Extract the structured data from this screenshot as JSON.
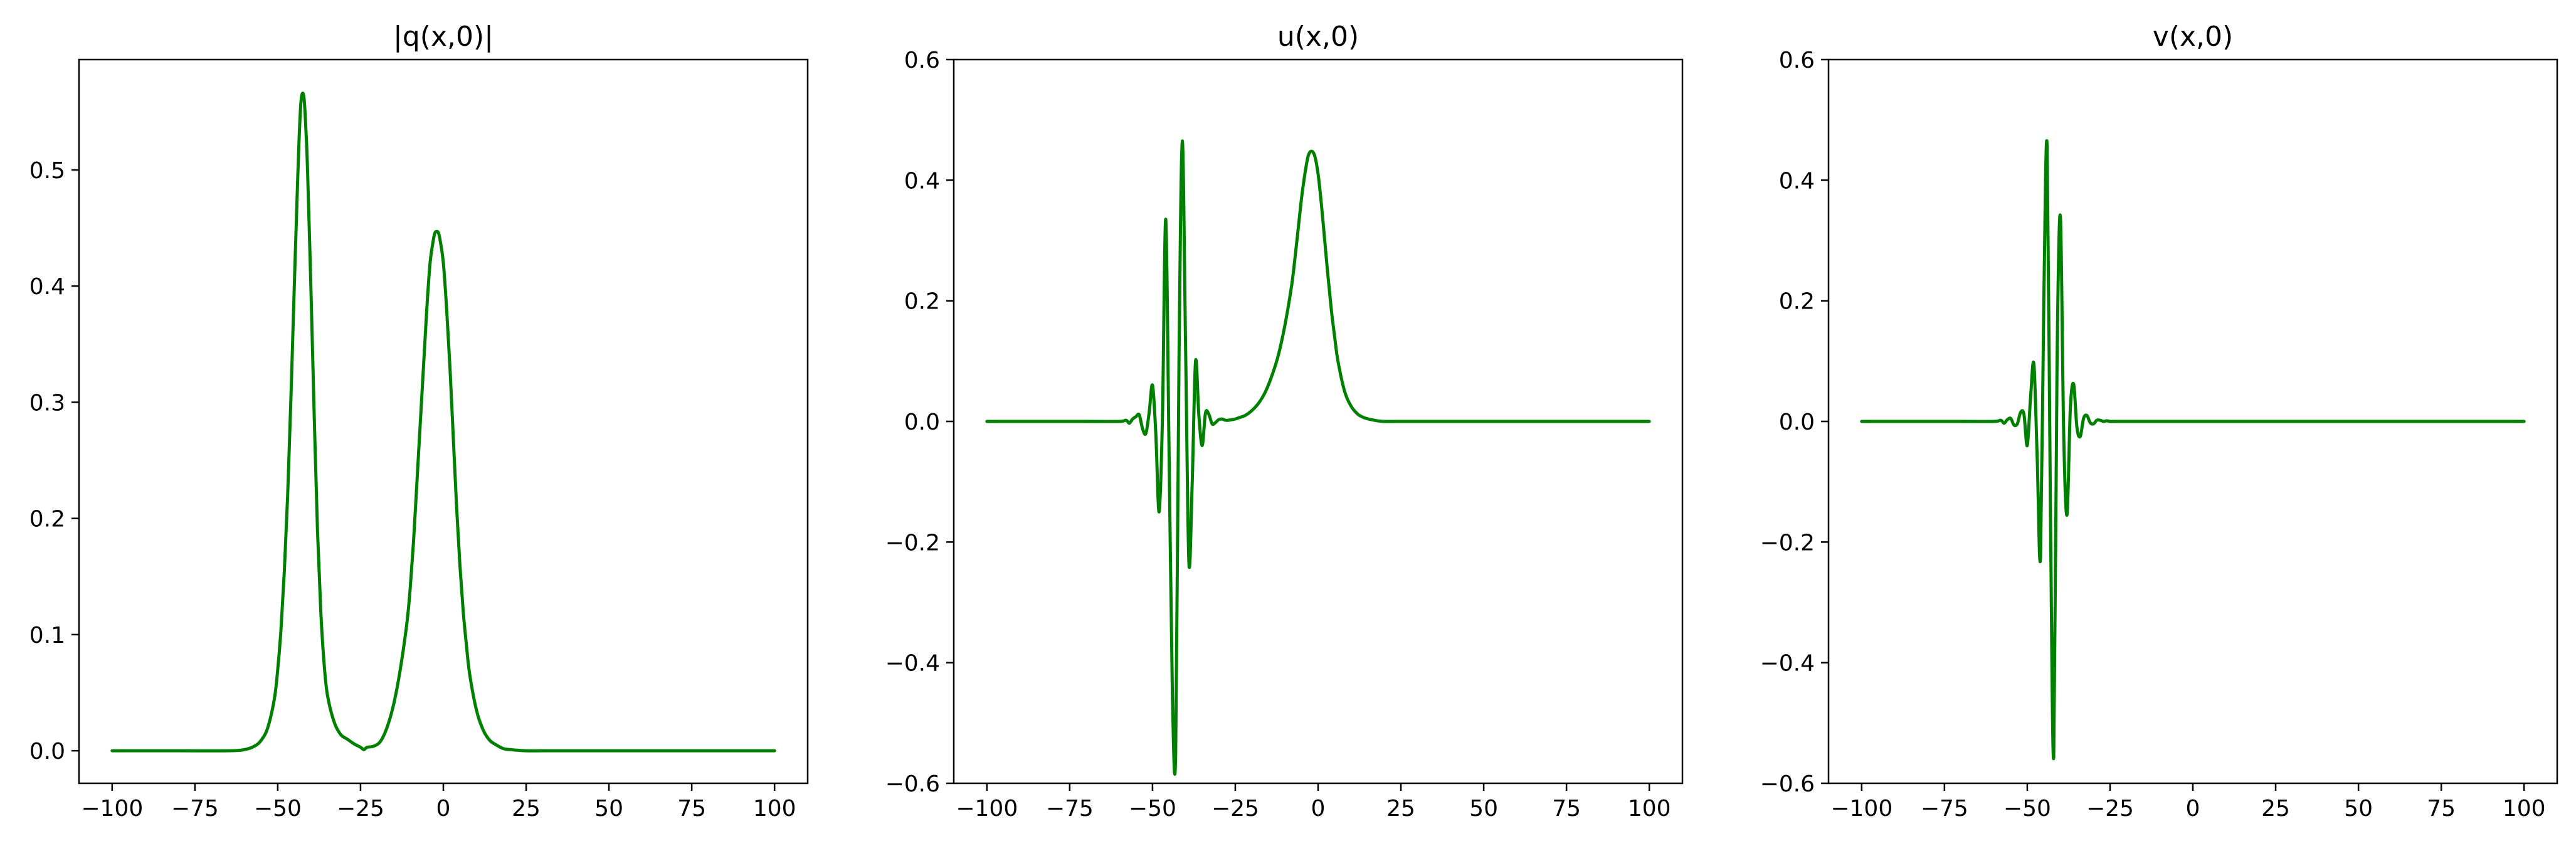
{
  "line_color": "#008000",
  "chart_data": [
    {
      "type": "line",
      "title": "|q(x,0)|",
      "xlabel": "",
      "ylabel": "",
      "xlim": [
        -110,
        110
      ],
      "ylim": [
        -0.028,
        0.595
      ],
      "xticks": [
        "−100",
        "−75",
        "−50",
        "−25",
        "0",
        "25",
        "50",
        "75",
        "100"
      ],
      "xtick_values": [
        -100,
        -75,
        -50,
        -25,
        0,
        25,
        50,
        75,
        100
      ],
      "yticks": [
        "0.0",
        "0.1",
        "0.2",
        "0.3",
        "0.4",
        "0.5"
      ],
      "ytick_values": [
        0,
        0.1,
        0.2,
        0.3,
        0.4,
        0.5
      ],
      "grid": false,
      "series": [
        {
          "x": [
            -100,
            -80,
            -65,
            -60,
            -57,
            -55,
            -53,
            -51,
            -50,
            -49,
            -48,
            -47,
            -46,
            -45,
            -44,
            -43.5,
            -43,
            -42.5,
            -42,
            -41.5,
            -41,
            -40,
            -39,
            -38,
            -37,
            -36,
            -35,
            -33,
            -31,
            -29,
            -27,
            -25,
            -24,
            -23,
            -21,
            -19,
            -17,
            -15,
            -13,
            -11,
            -10,
            -9,
            -8,
            -7,
            -6,
            -5,
            -4,
            -3,
            -2.5,
            -2,
            -1.5,
            -1,
            0,
            1,
            2,
            3,
            4,
            5,
            6,
            7,
            8,
            10,
            12,
            14,
            16,
            18,
            20,
            25,
            30,
            40,
            60,
            80,
            100
          ],
          "y": [
            0,
            0,
            0,
            0.001,
            0.004,
            0.009,
            0.02,
            0.045,
            0.07,
            0.105,
            0.155,
            0.22,
            0.305,
            0.4,
            0.49,
            0.53,
            0.558,
            0.566,
            0.56,
            0.535,
            0.5,
            0.4,
            0.29,
            0.19,
            0.12,
            0.075,
            0.048,
            0.025,
            0.014,
            0.01,
            0.006,
            0.003,
            0.001,
            0.003,
            0.004,
            0.008,
            0.02,
            0.04,
            0.07,
            0.11,
            0.14,
            0.18,
            0.23,
            0.28,
            0.33,
            0.38,
            0.42,
            0.44,
            0.446,
            0.447,
            0.446,
            0.44,
            0.42,
            0.38,
            0.33,
            0.27,
            0.21,
            0.16,
            0.12,
            0.09,
            0.065,
            0.035,
            0.018,
            0.009,
            0.005,
            0.002,
            0.001,
            0,
            0,
            0,
            0,
            0,
            0
          ]
        }
      ]
    },
    {
      "type": "line",
      "title": "u(x,0)",
      "xlabel": "",
      "ylabel": "",
      "xlim": [
        -110,
        110
      ],
      "ylim": [
        -0.6,
        0.6
      ],
      "xticks": [
        "−100",
        "−75",
        "−50",
        "−25",
        "0",
        "25",
        "50",
        "75",
        "100"
      ],
      "xtick_values": [
        -100,
        -75,
        -50,
        -25,
        0,
        25,
        50,
        75,
        100
      ],
      "yticks": [
        "−0.6",
        "−0.4",
        "−0.2",
        "0.0",
        "0.2",
        "0.4",
        "0.6"
      ],
      "ytick_values": [
        -0.6,
        -0.4,
        -0.2,
        0,
        0.2,
        0.4,
        0.6
      ],
      "grid": false,
      "series": [
        {
          "x": [
            -100,
            -70,
            -60,
            -58,
            -57,
            -56,
            -55,
            -54,
            -53,
            -52,
            -51,
            -50,
            -49,
            -48,
            -47,
            -46,
            -45,
            -44,
            -43,
            -42,
            -41,
            -40,
            -39,
            -38,
            -37,
            -36,
            -35,
            -34,
            -33,
            -32,
            -31,
            -30,
            -29,
            -28,
            -27,
            -26,
            -25,
            -24,
            -22,
            -20,
            -18,
            -16,
            -14,
            -12,
            -10,
            -8,
            -7,
            -6,
            -5,
            -4,
            -3,
            -2,
            -1,
            0,
            1,
            2,
            3,
            4,
            5,
            6,
            8,
            10,
            12,
            14,
            16,
            18,
            20,
            25,
            30,
            40,
            60,
            80,
            100
          ],
          "y": [
            0,
            0,
            0,
            0.002,
            -0.003,
            0.004,
            0.008,
            0.011,
            -0.012,
            -0.02,
            0.015,
            0.06,
            -0.02,
            -0.15,
            0.005,
            0.335,
            -0.05,
            -0.45,
            -0.55,
            0.1,
            0.465,
            0.12,
            -0.235,
            -0.1,
            0.1,
            0.01,
            -0.04,
            0.014,
            0.012,
            -0.004,
            -0.002,
            0.003,
            0.004,
            0.002,
            0.002,
            0.003,
            0.004,
            0.006,
            0.01,
            0.018,
            0.03,
            0.048,
            0.075,
            0.11,
            0.16,
            0.225,
            0.27,
            0.32,
            0.37,
            0.41,
            0.44,
            0.448,
            0.44,
            0.41,
            0.36,
            0.3,
            0.24,
            0.185,
            0.14,
            0.1,
            0.05,
            0.025,
            0.012,
            0.006,
            0.003,
            0.001,
            0,
            0,
            0,
            0,
            0,
            0,
            0
          ]
        }
      ]
    },
    {
      "type": "line",
      "title": "v(x,0)",
      "xlabel": "",
      "ylabel": "",
      "xlim": [
        -110,
        110
      ],
      "ylim": [
        -0.6,
        0.6
      ],
      "xticks": [
        "−100",
        "−75",
        "−50",
        "−25",
        "0",
        "25",
        "50",
        "75",
        "100"
      ],
      "xtick_values": [
        -100,
        -75,
        -50,
        -25,
        0,
        25,
        50,
        75,
        100
      ],
      "yticks": [
        "−0.6",
        "−0.4",
        "−0.2",
        "0.0",
        "0.2",
        "0.4",
        "0.6"
      ],
      "ytick_values": [
        -0.6,
        -0.4,
        -0.2,
        0,
        0.2,
        0.4,
        0.6
      ],
      "grid": false,
      "series": [
        {
          "x": [
            -100,
            -70,
            -60,
            -58,
            -57,
            -56,
            -55,
            -54,
            -53,
            -52,
            -51,
            -50,
            -49,
            -48,
            -47,
            -46,
            -45,
            -44,
            -43,
            -42,
            -41,
            -40,
            -39,
            -38,
            -37,
            -36,
            -35,
            -34,
            -33,
            -32,
            -31,
            -30,
            -29,
            -28,
            -27,
            -26,
            -25,
            -24,
            -22,
            -20,
            -10,
            0,
            25,
            50,
            75,
            100
          ],
          "y": [
            0,
            0,
            0,
            0.002,
            -0.003,
            0.003,
            0.005,
            -0.006,
            -0.004,
            0.015,
            0.012,
            -0.04,
            0.04,
            0.095,
            -0.06,
            -0.225,
            0.2,
            0.455,
            -0.15,
            -0.555,
            0.1,
            0.34,
            -0.02,
            -0.155,
            0.02,
            0.062,
            -0.01,
            -0.025,
            0.005,
            0.01,
            -0.002,
            -0.004,
            0.002,
            0.002,
            0,
            0.001,
            0,
            0,
            0,
            0,
            0,
            0,
            0,
            0,
            0,
            0
          ]
        }
      ]
    }
  ]
}
